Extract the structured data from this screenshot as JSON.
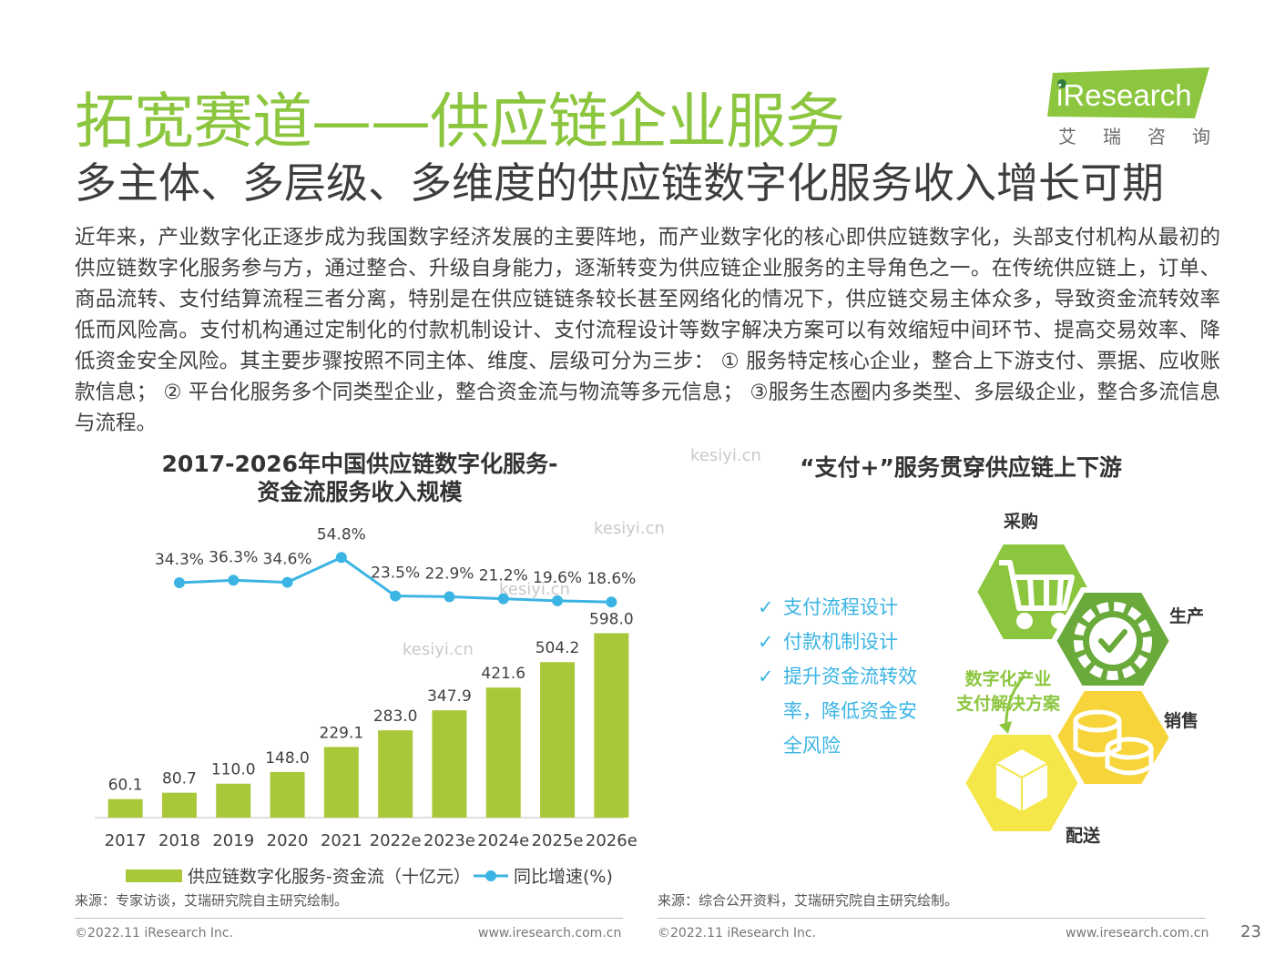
{
  "header": {
    "title": "拓宽赛道——供应链企业服务",
    "subtitle": "多主体、多层级、多维度的供应链数字化服务收入增长可期",
    "logo_text": "iResearch",
    "logo_cn": "艾瑞咨询"
  },
  "body_text": "近年来，产业数字化正逐步成为我国数字经济发展的主要阵地，而产业数字化的核心即供应链数字化，头部支付机构从最初的供应链数字化服务参与方，通过整合、升级自身能力，逐渐转变为供应链企业服务的主导角色之一。在传统供应链上，订单、商品流转、支付结算流程三者分离，特别是在供应链链条较长甚至网络化的情况下，供应链交易主体众多，导致资金流转效率低而风险高。支付机构通过定制化的付款机制设计、支付流程设计等数字解决方案可以有效缩短中间环节、提高交易效率、降低资金安全风险。其主要步骤按照不同主体、维度、层级可分为三步： ① 服务特定核心企业，整合上下游支付、票据、应收账款信息； ② 平台化服务多个同类型企业，整合资金流与物流等多元信息； ③服务生态圈内多类型、多层级企业，整合多流信息与流程。",
  "chart_data": {
    "type": "bar+line",
    "title_line1": "2017-2026年中国供应链数字化服务-",
    "title_line2": "资金流服务收入规模",
    "categories": [
      "2017",
      "2018",
      "2019",
      "2020",
      "2021",
      "2022e",
      "2023e",
      "2024e",
      "2025e",
      "2026e"
    ],
    "series": [
      {
        "name": "供应链数字化服务-资金流（十亿元）",
        "type": "bar",
        "color": "#a8c83a",
        "values": [
          60.1,
          80.7,
          110.0,
          148.0,
          229.1,
          283.0,
          347.9,
          421.6,
          504.2,
          598.0
        ],
        "labels": [
          "60.1",
          "80.7",
          "110.0",
          "148.0",
          "229.1",
          "283.0",
          "347.9",
          "421.6",
          "504.2",
          "598.0"
        ]
      },
      {
        "name": "同比增速(%)",
        "type": "line",
        "color": "#3bb4e3",
        "values": [
          null,
          34.3,
          36.3,
          34.6,
          54.8,
          23.5,
          22.9,
          21.2,
          19.6,
          18.6
        ],
        "labels": [
          "",
          "34.3%",
          "36.3%",
          "34.6%",
          "54.8%",
          "23.5%",
          "22.9%",
          "21.2%",
          "19.6%",
          "18.6%"
        ]
      }
    ],
    "legend_position": "bottom",
    "grid": false
  },
  "right_panel": {
    "title": "“支付+”服务贯穿供应链上下游",
    "checklist": [
      "支付流程设计",
      "付款机制设计",
      "提升资金流转效率，降低资金安全风险"
    ],
    "check_mark": "✓",
    "stages": [
      "采购",
      "生产",
      "销售",
      "配送"
    ],
    "center_line1": "数字化产业",
    "center_line2": "支付解决方案",
    "colors": {
      "green": "#8cc63f",
      "dark_green": "#6aaa3a",
      "yellow": "#f7d53a",
      "yellow_light": "#f5e649"
    }
  },
  "sources": {
    "left": "来源：专家访谈，艾瑞研究院自主研究绘制。",
    "right": "来源：综合公开资料，艾瑞研究院自主研究绘制。"
  },
  "footer": {
    "left_copyright": "©2022.11 iResearch Inc.",
    "left_url": "www.iresearch.com.cn",
    "right_copyright": "©2022.11 iResearch Inc.",
    "right_url": "www.iresearch.com.cn",
    "page": "23"
  },
  "watermarks": [
    "kesiyi.cn",
    "kesiyi.cn",
    "kesiyi.cn",
    "kesiyi.cn"
  ]
}
